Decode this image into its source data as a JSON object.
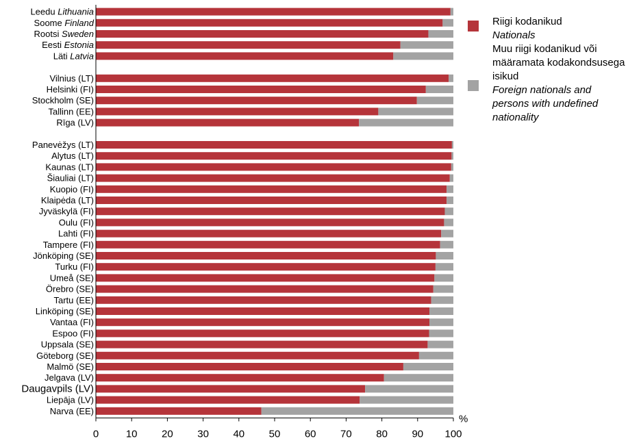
{
  "chart_data": {
    "type": "bar",
    "orientation": "horizontal",
    "stacked": true,
    "unit_label": "%",
    "xlim": [
      0,
      100
    ],
    "x_ticks": [
      "0",
      "10",
      "20",
      "30",
      "40",
      "50",
      "60",
      "70",
      "80",
      "90",
      "100"
    ],
    "grid": false,
    "legend_position": "right",
    "groups": [
      {
        "rows": [
          {
            "name": "Leedu",
            "name_en": "Lithuania",
            "nationals": 99.2
          },
          {
            "name": "Soome",
            "name_en": "Finland",
            "nationals": 97.0
          },
          {
            "name": "Rootsi",
            "name_en": "Sweden",
            "nationals": 93.0
          },
          {
            "name": "Eesti",
            "name_en": "Estonia",
            "nationals": 85.2
          },
          {
            "name": "Läti",
            "name_en": "Latvia",
            "nationals": 83.2
          }
        ]
      },
      {
        "rows": [
          {
            "name": "Vilnius (LT)",
            "nationals": 98.7
          },
          {
            "name": "Helsinki (FI)",
            "nationals": 92.3
          },
          {
            "name": "Stockholm (SE)",
            "nationals": 89.8
          },
          {
            "name": "Tallinn (EE)",
            "nationals": 79.0
          },
          {
            "name": "Rīga (LV)",
            "nationals": 73.6
          }
        ]
      },
      {
        "rows": [
          {
            "name": "Panevėžys (LT)",
            "nationals": 99.6
          },
          {
            "name": "Alytus (LT)",
            "nationals": 99.5
          },
          {
            "name": "Kaunas (LT)",
            "nationals": 99.4
          },
          {
            "name": "Šiauliai (LT)",
            "nationals": 99.0
          },
          {
            "name": "Kuopio (FI)",
            "nationals": 98.1
          },
          {
            "name": "Klaipėda (LT)",
            "nationals": 98.1
          },
          {
            "name": "Jyväskylä (FI)",
            "nationals": 97.6
          },
          {
            "name": "Oulu (FI)",
            "nationals": 97.4
          },
          {
            "name": "Lahti (FI)",
            "nationals": 96.6
          },
          {
            "name": "Tampere (FI)",
            "nationals": 96.3
          },
          {
            "name": "Jönköping (SE)",
            "nationals": 95.1
          },
          {
            "name": "Turku (FI)",
            "nationals": 95.0
          },
          {
            "name": "Umeå (SE)",
            "nationals": 94.7
          },
          {
            "name": "Örebro (SE)",
            "nationals": 94.4
          },
          {
            "name": "Tartu (EE)",
            "nationals": 93.8
          },
          {
            "name": "Linköping (SE)",
            "nationals": 93.3
          },
          {
            "name": "Vantaa (FI)",
            "nationals": 93.3
          },
          {
            "name": "Espoo (FI)",
            "nationals": 93.2
          },
          {
            "name": "Uppsala (SE)",
            "nationals": 92.8
          },
          {
            "name": "Göteborg (SE)",
            "nationals": 90.4
          },
          {
            "name": "Malmö (SE)",
            "nationals": 86.0
          },
          {
            "name": "Jelgava (LV)",
            "nationals": 80.6
          },
          {
            "name": "Daugavpils (LV)",
            "nationals": 75.3,
            "emphasis": true
          },
          {
            "name": "Liepāja (LV)",
            "nationals": 73.8
          },
          {
            "name": "Narva (EE)",
            "nationals": 46.3
          }
        ]
      }
    ],
    "series": [
      {
        "key": "nationals",
        "color": "#b5343a"
      },
      {
        "key": "foreign",
        "color": "#a3a3a3"
      }
    ]
  },
  "legend": {
    "nationals": {
      "label": "Riigi kodanikud",
      "label_en": "Nationals",
      "color": "#b5343a"
    },
    "foreign": {
      "label": "Muu riigi kodanikud või määramata kodakondsusega isikud",
      "label_en": "Foreign nationals and persons with undefined nationality",
      "color": "#a3a3a3"
    }
  }
}
